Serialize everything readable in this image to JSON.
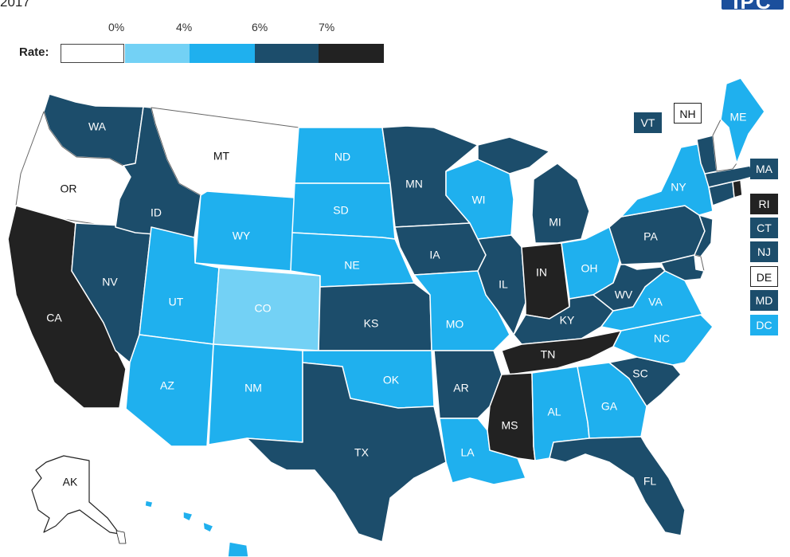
{
  "year": "2017",
  "logo_text": "IPC",
  "legend": {
    "label": "Rate:",
    "ticks": [
      "0%",
      "4%",
      "6%",
      "7%"
    ],
    "swatches": [
      "#ffffff",
      "#73d1f5",
      "#1fb0ee",
      "#1c4d6b",
      "#222222"
    ]
  },
  "colors": {
    "white": "#ffffff",
    "light": "#73d1f5",
    "mid": "#1fb0ee",
    "dark": "#1c4d6b",
    "black": "#222222"
  },
  "states": {
    "WA": "dark",
    "OR": "white",
    "CA": "black",
    "NV": "dark",
    "ID": "dark",
    "MT": "white",
    "WY": "mid",
    "UT": "mid",
    "AZ": "mid",
    "CO": "light",
    "NM": "mid",
    "ND": "mid",
    "SD": "mid",
    "NE": "mid",
    "KS": "dark",
    "OK": "mid",
    "TX": "dark",
    "MN": "dark",
    "IA": "dark",
    "MO": "mid",
    "AR": "dark",
    "LA": "mid",
    "WI": "mid",
    "IL": "dark",
    "MI": "dark",
    "IN": "black",
    "OH": "mid",
    "KY": "dark",
    "TN": "black",
    "MS": "black",
    "AL": "mid",
    "GA": "mid",
    "FL": "dark",
    "SC": "dark",
    "NC": "mid",
    "VA": "mid",
    "WV": "dark",
    "PA": "dark",
    "NY": "mid",
    "ME": "mid",
    "VT": "dark",
    "NH": "white",
    "MA": "dark",
    "RI": "black",
    "CT": "dark",
    "NJ": "dark",
    "DE": "white",
    "MD": "dark",
    "DC": "mid",
    "AK": "white",
    "HI": "mid"
  },
  "labels": {
    "WA": "WA",
    "OR": "OR",
    "CA": "CA",
    "NV": "NV",
    "ID": "ID",
    "MT": "MT",
    "WY": "WY",
    "UT": "UT",
    "AZ": "AZ",
    "CO": "CO",
    "NM": "NM",
    "ND": "ND",
    "SD": "SD",
    "NE": "NE",
    "KS": "KS",
    "OK": "OK",
    "TX": "TX",
    "MN": "MN",
    "IA": "IA",
    "MO": "MO",
    "AR": "AR",
    "LA": "LA",
    "WI": "WI",
    "IL": "IL",
    "MI": "MI",
    "IN": "IN",
    "OH": "OH",
    "KY": "KY",
    "TN": "TN",
    "MS": "MS",
    "AL": "AL",
    "GA": "GA",
    "FL": "FL",
    "SC": "SC",
    "NC": "NC",
    "VA": "VA",
    "WV": "WV",
    "PA": "PA",
    "NY": "NY",
    "ME": "ME",
    "AK": "AK"
  },
  "callouts": {
    "VT": "VT",
    "NH": "NH",
    "MA": "MA",
    "RI": "RI",
    "CT": "CT",
    "NJ": "NJ",
    "DE": "DE",
    "MD": "MD",
    "DC": "DC"
  }
}
